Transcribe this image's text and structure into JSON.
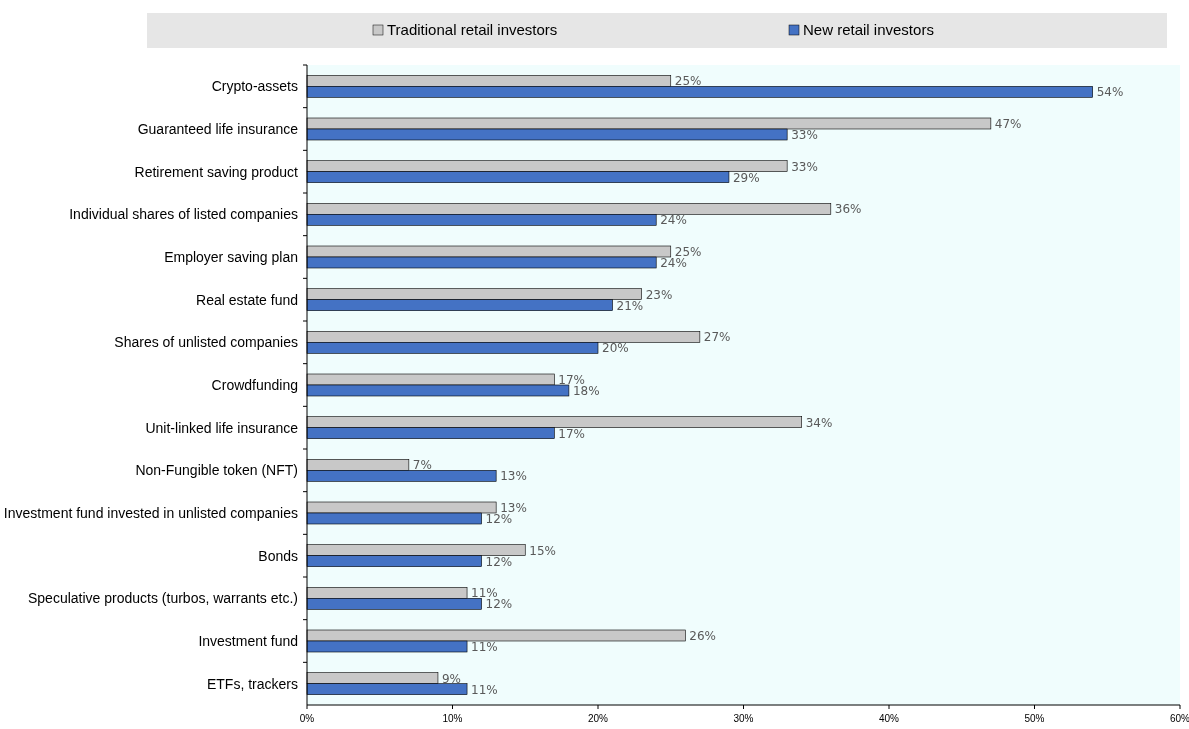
{
  "chart_data": {
    "type": "bar",
    "orientation": "horizontal",
    "legend": "top",
    "categories": [
      "Crypto-assets",
      "Guaranteed life insurance",
      "Retirement saving product",
      "Individual shares of listed companies",
      "Employer saving plan",
      "Real estate fund",
      "Shares of unlisted companies",
      "Crowdfunding",
      "Unit-linked life insurance",
      "Non-Fungible token (NFT)",
      "Investment fund invested in unlisted companies",
      "Bonds",
      "Speculative products (turbos, warrants etc.)",
      "Investment fund",
      "ETFs, trackers"
    ],
    "series": [
      {
        "name": "Traditional retail investors",
        "color": "#c8c8c8",
        "values": [
          25,
          47,
          33,
          36,
          25,
          23,
          27,
          17,
          34,
          7,
          13,
          15,
          11,
          26,
          9
        ],
        "value_labels": [
          "25%",
          "47%",
          "33%",
          "36%",
          "25%",
          "23%",
          "27%",
          "17%",
          "34%",
          "7%",
          "13%",
          "15%",
          "11%",
          "26%",
          "9%"
        ]
      },
      {
        "name": "New retail investors",
        "color": "#4472c4",
        "values": [
          54,
          33,
          29,
          24,
          24,
          21,
          20,
          18,
          17,
          13,
          12,
          12,
          12,
          11,
          11
        ],
        "value_labels": [
          "54%",
          "33%",
          "29%",
          "24%",
          "24%",
          "21%",
          "20%",
          "18%",
          "17%",
          "13%",
          "12%",
          "12%",
          "12%",
          "11%",
          "11%"
        ]
      }
    ],
    "xlim": [
      0,
      60
    ],
    "xticks": [
      {
        "value": 0,
        "label": "0%"
      },
      {
        "value": 10,
        "label": "10%"
      },
      {
        "value": 20,
        "label": "20%"
      },
      {
        "value": 30,
        "label": "30%"
      },
      {
        "value": 40,
        "label": "40%"
      },
      {
        "value": 50,
        "label": "50%"
      },
      {
        "value": 60,
        "label": "60%"
      }
    ],
    "grid": false
  }
}
